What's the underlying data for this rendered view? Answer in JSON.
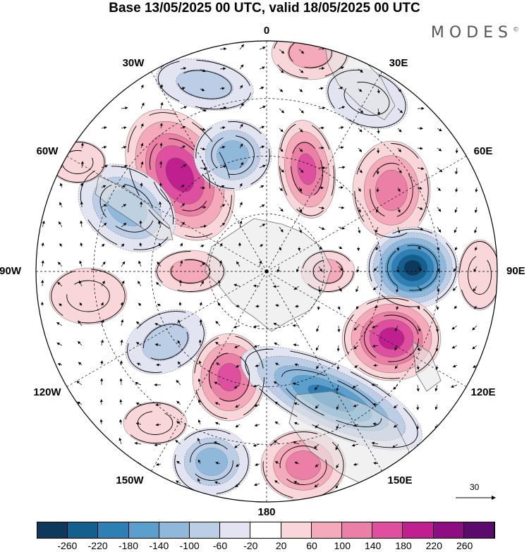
{
  "title": "Base 13/05/2025 00 UTC, valid 18/05/2025 00 UTC",
  "logo": "MODES",
  "logo_mark": "©",
  "longitude_labels": [
    "0",
    "30E",
    "60E",
    "90E",
    "120E",
    "150E",
    "180",
    "150W",
    "120W",
    "90W",
    "60W",
    "30W"
  ],
  "vector_scale_label": "30",
  "colorbar": {
    "ticks": [
      "-260",
      "-220",
      "-180",
      "-140",
      "-100",
      "-60",
      "-20",
      "20",
      "60",
      "100",
      "140",
      "180",
      "220",
      "260"
    ],
    "colors": [
      "#0d3a5c",
      "#135f8e",
      "#2e7fb5",
      "#5b9fcc",
      "#8fb8da",
      "#bccde6",
      "#e2e4f1",
      "#ffffff",
      "#f9d6da",
      "#f4aabb",
      "#ec7fa6",
      "#df4fa0",
      "#c0208f",
      "#8e0d82",
      "#5d0a6e"
    ]
  },
  "colors": {
    "land": "#e6e6e6",
    "coast": "#707070",
    "grid": "#000000"
  }
}
